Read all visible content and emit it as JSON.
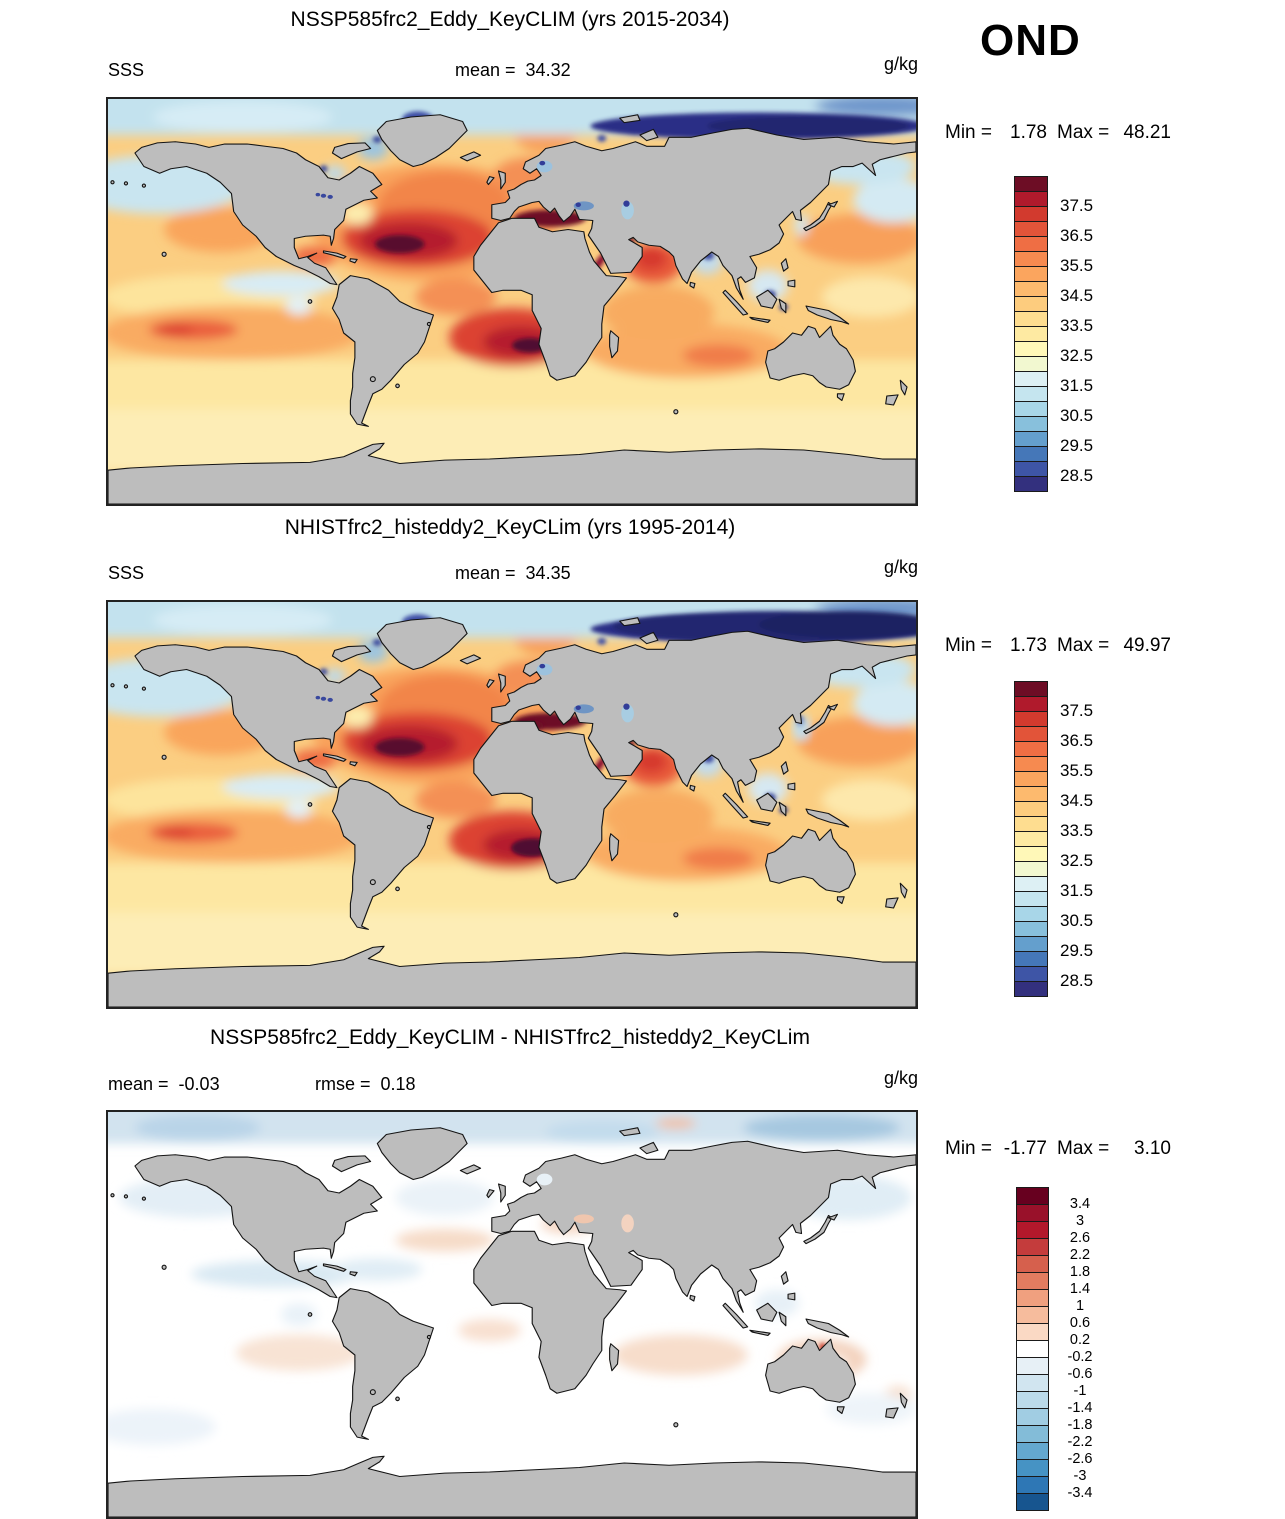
{
  "season": "OND",
  "panel1": {
    "title": "NSSP585frc2_Eddy_KeyCLIM (yrs 2015-2034)",
    "variable": "SSS",
    "mean_label": "mean =",
    "mean_value": "34.32",
    "units": "g/kg",
    "min_label": "Min =",
    "min_value": "1.78",
    "max_label": "Max =",
    "max_value": "48.21"
  },
  "panel2": {
    "title": "NHISTfrc2_histeddy2_KeyCLim (yrs 1995-2014)",
    "variable": "SSS",
    "mean_label": "mean =",
    "mean_value": "34.35",
    "units": "g/kg",
    "min_label": "Min =",
    "min_value": "1.73",
    "max_label": "Max =",
    "max_value": "49.97"
  },
  "panel3": {
    "title": "NSSP585frc2_Eddy_KeyCLIM - NHISTfrc2_histeddy2_KeyCLim",
    "mean_label": "mean =",
    "mean_value": "-0.03",
    "rmse_label": "rmse =",
    "rmse_value": "0.18",
    "units": "g/kg",
    "min_label": "Min =",
    "min_value": "-1.77",
    "max_label": "Max =",
    "max_value": "3.10"
  },
  "colors": {
    "land": "#bdbdbd",
    "coastline": "#141414",
    "frame": "#222222"
  },
  "colorbars": {
    "sss": {
      "colors": [
        "#6d0d25",
        "#b01a2c",
        "#d23a2e",
        "#e25439",
        "#ef6e44",
        "#f68a50",
        "#fba55e",
        "#fdba6e",
        "#fdcc7e",
        "#fedd90",
        "#feeaa2",
        "#fff8b8",
        "#f2f8d0",
        "#ddf0f4",
        "#c5e5ef",
        "#a8d6e8",
        "#88c0dc",
        "#649fcd",
        "#4577b8",
        "#3e55a6",
        "#33307e"
      ],
      "ticks": [
        {
          "label": "37.5",
          "b": 2
        },
        {
          "label": "36.5",
          "b": 4
        },
        {
          "label": "35.5",
          "b": 6
        },
        {
          "label": "34.5",
          "b": 8
        },
        {
          "label": "33.5",
          "b": 10
        },
        {
          "label": "32.5",
          "b": 12
        },
        {
          "label": "31.5",
          "b": 14
        },
        {
          "label": "30.5",
          "b": 16
        },
        {
          "label": "29.5",
          "b": 18
        },
        {
          "label": "28.5",
          "b": 20
        }
      ]
    },
    "diff": {
      "colors": [
        "#67001f",
        "#99112a",
        "#b2182b",
        "#c43c3c",
        "#d6604d",
        "#e27c60",
        "#f0a07f",
        "#f6bc9d",
        "#fad9c4",
        "#ffffff",
        "#e7f0f6",
        "#d1e5f0",
        "#bbdaea",
        "#a1cde3",
        "#83bcd8",
        "#64a8cf",
        "#4693c4",
        "#2e77b5",
        "#17558f"
      ],
      "ticks": [
        {
          "label": "3.4",
          "b": 1
        },
        {
          "label": "3",
          "b": 2
        },
        {
          "label": "2.6",
          "b": 3
        },
        {
          "label": "2.2",
          "b": 4
        },
        {
          "label": "1.8",
          "b": 5
        },
        {
          "label": "1.4",
          "b": 6
        },
        {
          "label": "1",
          "b": 7
        },
        {
          "label": "0.6",
          "b": 8
        },
        {
          "label": "0.2",
          "b": 9
        },
        {
          "label": "-0.2",
          "b": 10
        },
        {
          "label": "-0.6",
          "b": 11
        },
        {
          "label": "-1",
          "b": 12
        },
        {
          "label": "-1.4",
          "b": 13
        },
        {
          "label": "-1.8",
          "b": 14
        },
        {
          "label": "-2.2",
          "b": 15
        },
        {
          "label": "-2.6",
          "b": 16
        },
        {
          "label": "-3",
          "b": 17
        },
        {
          "label": "-3.4",
          "b": 18
        }
      ]
    }
  },
  "chart_data": [
    {
      "type": "heatmap",
      "title": "NSSP585frc2_Eddy_KeyCLIM (yrs 2015-2034)",
      "variable": "SSS",
      "units": "g/kg",
      "season": "OND",
      "mean": 34.32,
      "min": 1.78,
      "max": 48.21,
      "colorbar_ticks": [
        37.5,
        36.5,
        35.5,
        34.5,
        33.5,
        32.5,
        31.5,
        30.5,
        29.5,
        28.5
      ],
      "layout": "global lon-lat map, gray continents, discrete red-yellow-blue colorbar (high salinity red, low salinity blue)",
      "notable_features": "salinity maxima (dark red) in subtropical North Atlantic, Mediterranean, South Atlantic; fresh (blue/navy) Arctic along Siberian coast, Bay of Bengal, Indonesian seas"
    },
    {
      "type": "heatmap",
      "title": "NHISTfrc2_histeddy2_KeyCLim (yrs 1995-2014)",
      "variable": "SSS",
      "units": "g/kg",
      "season": "OND",
      "mean": 34.35,
      "min": 1.73,
      "max": 49.97,
      "colorbar_ticks": [
        37.5,
        36.5,
        35.5,
        34.5,
        33.5,
        32.5,
        31.5,
        30.5,
        29.5,
        28.5
      ],
      "layout": "global lon-lat map, gray continents, discrete red-yellow-blue colorbar",
      "notable_features": "very similar pattern to panel 1; slightly wider Arctic fresh band and stronger Atlantic salinity cores"
    },
    {
      "type": "heatmap",
      "title": "NSSP585frc2_Eddy_KeyCLIM - NHISTfrc2_histeddy2_KeyCLim",
      "variable": "SSS difference",
      "units": "g/kg",
      "season": "OND",
      "mean": -0.03,
      "rmse": 0.18,
      "min": -1.77,
      "max": 3.1,
      "colorbar_ticks": [
        3.4,
        3,
        2.6,
        2.2,
        1.8,
        1.4,
        1,
        0.6,
        0.2,
        -0.2,
        -0.6,
        -1,
        -1.4,
        -1.8,
        -2.2,
        -2.6,
        -3,
        -3.4
      ],
      "layout": "global lon-lat map, mostly white (near-zero) with light blue freshening at high northern latitudes and faint pink/red salinification patches in subtropics and around Australia"
    }
  ]
}
